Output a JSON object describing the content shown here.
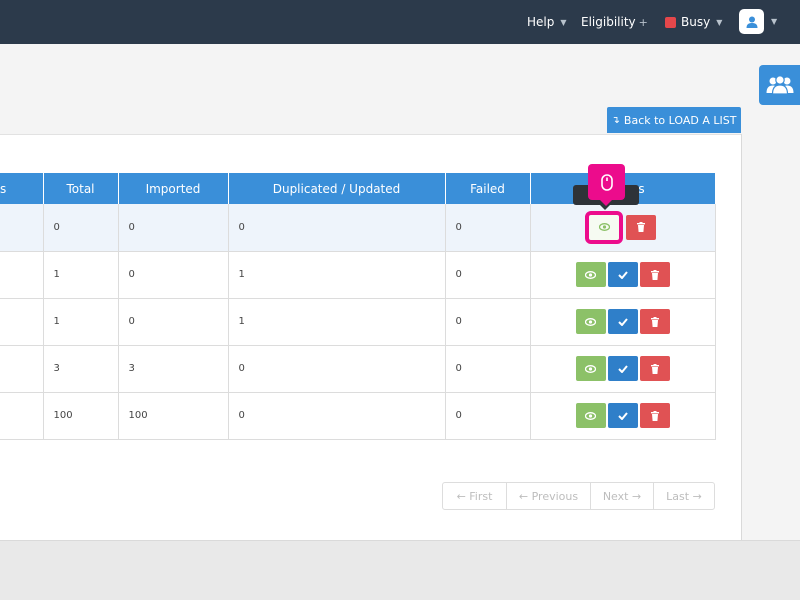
{
  "topbar": {
    "help_label": "Help",
    "eligibility_label": "Eligibility",
    "busy_label": "Busy",
    "busy_color": "#e5474b"
  },
  "back_button_label": "Back to LOAD A LIST",
  "table": {
    "headers": [
      "s",
      "Total",
      "Imported",
      "Duplicated / Updated",
      "Failed",
      "Actions"
    ],
    "rows": [
      {
        "total": "0",
        "imported": "0",
        "duplicated": "0",
        "failed": "0"
      },
      {
        "total": "1",
        "imported": "0",
        "duplicated": "1",
        "failed": "0"
      },
      {
        "total": "1",
        "imported": "0",
        "duplicated": "1",
        "failed": "0"
      },
      {
        "total": "3",
        "imported": "3",
        "duplicated": "0",
        "failed": "0"
      },
      {
        "total": "100",
        "imported": "100",
        "duplicated": "0",
        "failed": "0"
      }
    ]
  },
  "tooltip_text": "V      ls",
  "pagination": {
    "first": "← First",
    "previous": "← Previous",
    "next": "Next →",
    "last": "Last →"
  },
  "icons": {
    "view": "eye-icon",
    "approve": "check-icon",
    "delete": "trash-icon",
    "group": "users-group-icon",
    "user": "user-icon",
    "cursor": "mouse-icon"
  },
  "colors": {
    "topbar": "#2c3a4b",
    "accent": "#3a8fd9",
    "view_button": "#8cc168",
    "approve_button": "#2f7fc9",
    "delete_button": "#e05254",
    "highlight": "#ec0c8c"
  }
}
